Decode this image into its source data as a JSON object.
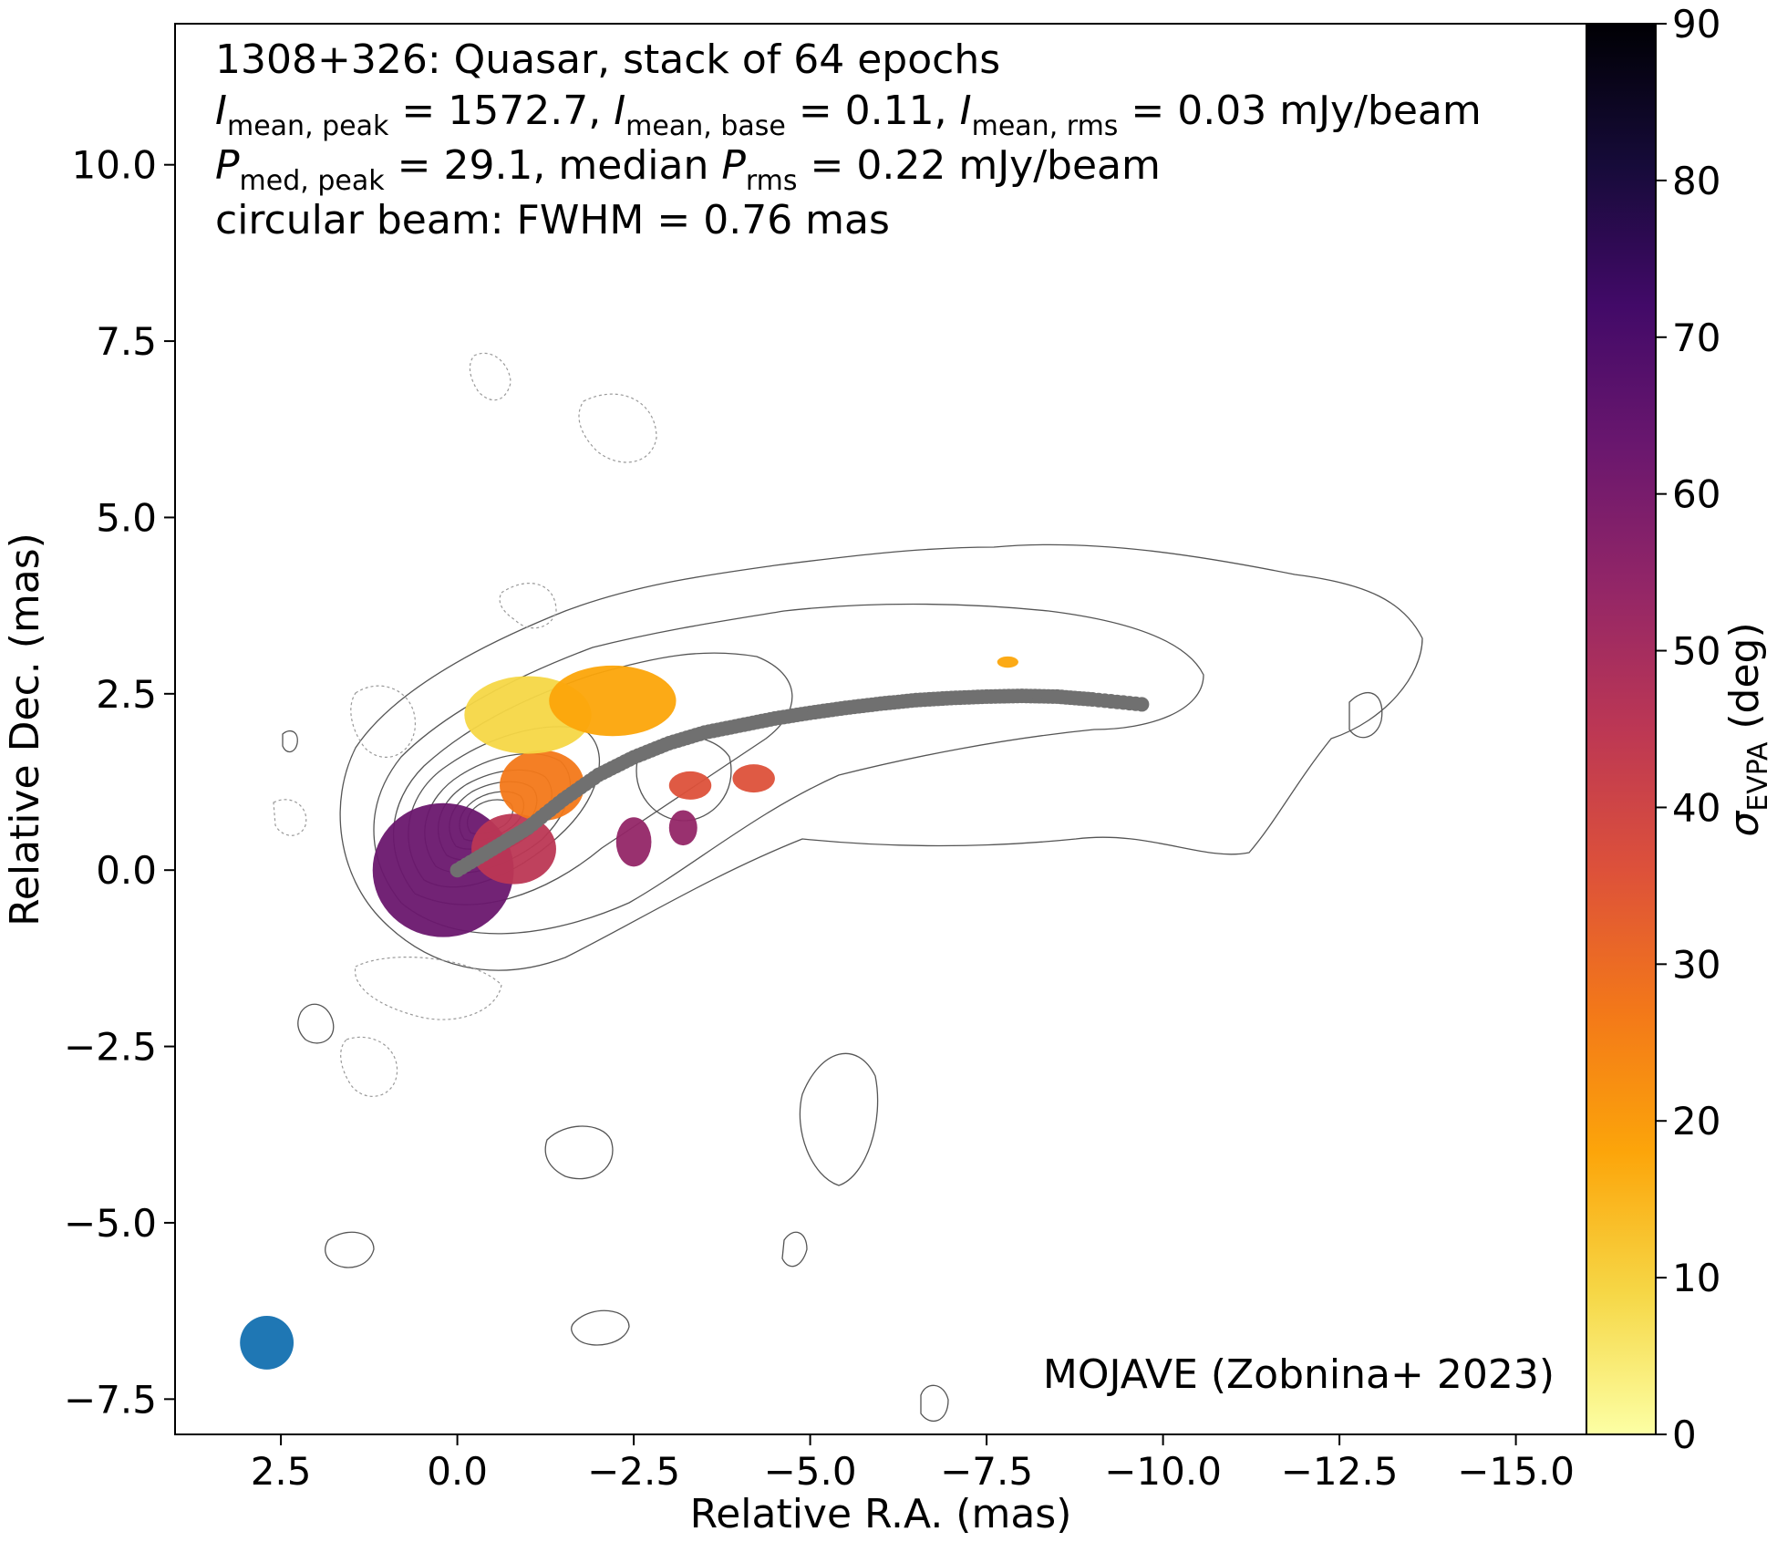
{
  "chart_data": {
    "type": "heatmap",
    "annotation": {
      "line1": "1308+326: Quasar, stack of 64 epochs",
      "line2": {
        "I1": "I",
        "I1_sub": "mean, peak",
        "I1_val": " = 1572.7, ",
        "I2": "I",
        "I2_sub": "mean, base",
        "I2_val": " = 0.11, ",
        "I3": "I",
        "I3_sub": "mean, rms",
        "I3_val": " = 0.03 mJy/beam"
      },
      "line3": {
        "P1": "P",
        "P1_sub": "med, peak",
        "P1_val": " = 29.1, median ",
        "P2": "P",
        "P2_sub": "rms",
        "P2_val": " = 0.22 mJy/beam"
      },
      "line4": "circular beam: FWHM = 0.76 mas",
      "credit": "MOJAVE (Zobnina+ 2023)"
    },
    "xlabel": "Relative R.A. (mas)",
    "ylabel": "Relative Dec. (mas)",
    "colorbar_label": {
      "sym": "σ",
      "sub": "EVPA",
      "unit": " (deg)"
    },
    "xlim": [
      4.0,
      -16.0
    ],
    "ylim": [
      -8.0,
      12.0
    ],
    "xticks": [
      2.5,
      0.0,
      -2.5,
      -5.0,
      -7.5,
      -10.0,
      -12.5,
      -15.0
    ],
    "xtick_labels": [
      "2.5",
      "0.0",
      "−2.5",
      "−5.0",
      "−7.5",
      "−10.0",
      "−12.5",
      "−15.0"
    ],
    "yticks": [
      10.0,
      7.5,
      5.0,
      2.5,
      0.0,
      -2.5,
      -5.0,
      -7.5
    ],
    "ytick_labels": [
      "10.0",
      "7.5",
      "5.0",
      "2.5",
      "0.0",
      "−2.5",
      "−5.0",
      "−7.5"
    ],
    "colorbar": {
      "range": [
        0,
        90
      ],
      "ticks": [
        0,
        10,
        20,
        30,
        40,
        50,
        60,
        70,
        80,
        90
      ],
      "tick_labels": [
        "0",
        "10",
        "20",
        "30",
        "40",
        "50",
        "60",
        "70",
        "80",
        "90"
      ],
      "colormap": "inferno_r",
      "stops": [
        "#fcffa4",
        "#f6d746",
        "#fca50a",
        "#f37819",
        "#dd513a",
        "#bc3754",
        "#932667",
        "#6a176e",
        "#420a68",
        "#160b39",
        "#000004"
      ]
    },
    "beam": {
      "x": 2.7,
      "y": -6.7,
      "fwhm": 0.76,
      "color": "#1f77b4"
    },
    "ridge_line": {
      "color": "#707070",
      "points": [
        [
          0.0,
          0.0
        ],
        [
          -0.5,
          0.3
        ],
        [
          -1.0,
          0.6
        ],
        [
          -1.5,
          1.0
        ],
        [
          -2.0,
          1.35
        ],
        [
          -2.5,
          1.6
        ],
        [
          -3.0,
          1.8
        ],
        [
          -3.5,
          1.95
        ],
        [
          -4.0,
          2.05
        ],
        [
          -4.5,
          2.15
        ],
        [
          -5.0,
          2.23
        ],
        [
          -5.5,
          2.3
        ],
        [
          -6.0,
          2.36
        ],
        [
          -6.5,
          2.41
        ],
        [
          -7.0,
          2.44
        ],
        [
          -7.5,
          2.46
        ],
        [
          -8.0,
          2.47
        ],
        [
          -8.5,
          2.46
        ],
        [
          -9.0,
          2.42
        ],
        [
          -9.7,
          2.35
        ]
      ]
    },
    "evpa_regions": [
      {
        "cx": 0.2,
        "cy": 0.0,
        "rx": 1.0,
        "ry": 0.95,
        "sigma": 65
      },
      {
        "cx": -0.8,
        "cy": 0.3,
        "rx": 0.6,
        "ry": 0.5,
        "sigma": 45
      },
      {
        "cx": -1.2,
        "cy": 1.2,
        "rx": 0.6,
        "ry": 0.5,
        "sigma": 28
      },
      {
        "cx": -1.0,
        "cy": 2.2,
        "rx": 0.9,
        "ry": 0.55,
        "sigma": 12
      },
      {
        "cx": -2.2,
        "cy": 2.4,
        "rx": 0.9,
        "ry": 0.5,
        "sigma": 14
      },
      {
        "cx": -3.3,
        "cy": 1.2,
        "rx": 0.3,
        "ry": 0.2,
        "sigma": 38
      },
      {
        "cx": -4.2,
        "cy": 1.3,
        "rx": 0.3,
        "ry": 0.2,
        "sigma": 34
      },
      {
        "cx": -2.5,
        "cy": 0.4,
        "rx": 0.25,
        "ry": 0.35,
        "sigma": 50
      },
      {
        "cx": -3.2,
        "cy": 0.6,
        "rx": 0.2,
        "ry": 0.25,
        "sigma": 55
      },
      {
        "cx": -7.8,
        "cy": 2.95,
        "rx": 0.15,
        "ry": 0.08,
        "sigma": 15
      }
    ],
    "stokes_i_contours": {
      "color": "#555555",
      "levels_shown": 12,
      "core_center": [
        0.1,
        0.1
      ]
    }
  }
}
